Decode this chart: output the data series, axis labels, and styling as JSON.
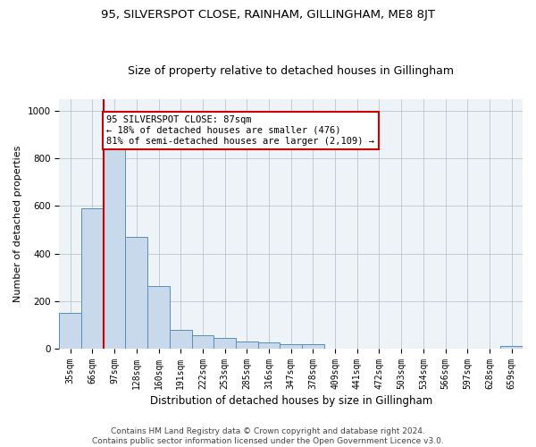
{
  "title": "95, SILVERSPOT CLOSE, RAINHAM, GILLINGHAM, ME8 8JT",
  "subtitle": "Size of property relative to detached houses in Gillingham",
  "xlabel": "Distribution of detached houses by size in Gillingham",
  "ylabel": "Number of detached properties",
  "footnote": "Contains HM Land Registry data © Crown copyright and database right 2024.\nContains public sector information licensed under the Open Government Licence v3.0.",
  "bin_labels": [
    "35sqm",
    "66sqm",
    "97sqm",
    "128sqm",
    "160sqm",
    "191sqm",
    "222sqm",
    "253sqm",
    "285sqm",
    "316sqm",
    "347sqm",
    "378sqm",
    "409sqm",
    "441sqm",
    "472sqm",
    "503sqm",
    "534sqm",
    "566sqm",
    "597sqm",
    "628sqm",
    "659sqm"
  ],
  "bar_values": [
    150,
    590,
    900,
    470,
    265,
    80,
    55,
    45,
    30,
    25,
    20,
    20,
    0,
    0,
    0,
    0,
    0,
    0,
    0,
    0,
    10
  ],
  "bar_color": "#c9d9ec",
  "bar_edgecolor": "#5b8db8",
  "vline_x_index": 2,
  "vline_color": "#cc0000",
  "annotation_text": "95 SILVERSPOT CLOSE: 87sqm\n← 18% of detached houses are smaller (476)\n81% of semi-detached houses are larger (2,109) →",
  "annotation_box_edgecolor": "#cc0000",
  "annotation_box_facecolor": "#ffffff",
  "ylim": [
    0,
    1050
  ],
  "yticks": [
    0,
    200,
    400,
    600,
    800,
    1000
  ],
  "title_fontsize": 9.5,
  "subtitle_fontsize": 9,
  "xlabel_fontsize": 8.5,
  "ylabel_fontsize": 8,
  "annotation_fontsize": 7.5,
  "tick_fontsize": 7,
  "footnote_fontsize": 6.5,
  "background_color": "#ffffff",
  "axes_bg_color": "#eef3f8",
  "grid_color": "#b0bec8"
}
